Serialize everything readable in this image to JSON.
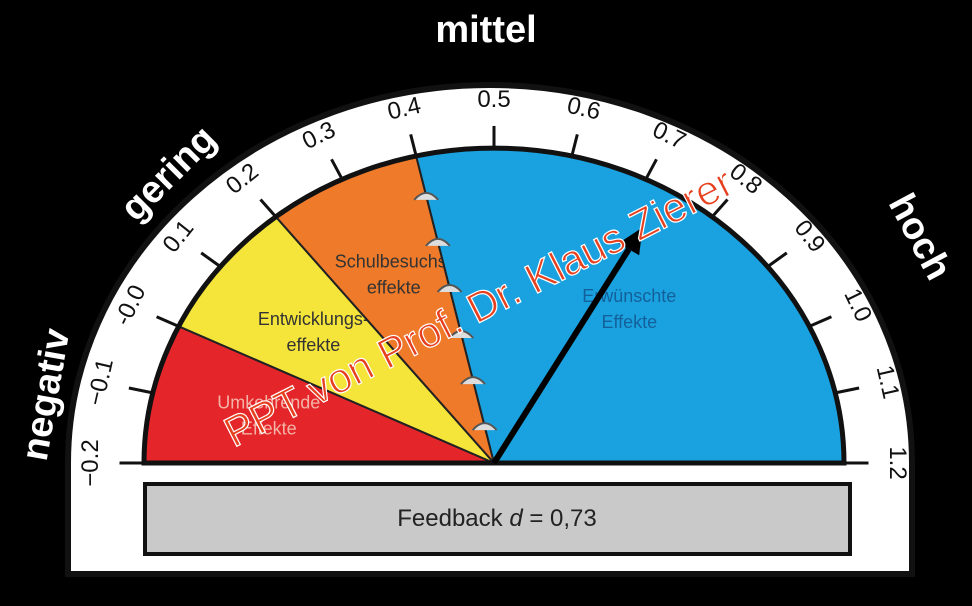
{
  "categories": [
    "negativ",
    "gering",
    "mittel",
    "hoch"
  ],
  "scale": {
    "min": -0.2,
    "max": 1.2,
    "ticks": [
      {
        "value": -0.2,
        "label": "−0.2"
      },
      {
        "value": -0.1,
        "label": "−0.1"
      },
      {
        "value": 0,
        "label": "-0.0"
      },
      {
        "value": 0.1,
        "label": "0.1"
      },
      {
        "value": 0.2,
        "label": "0.2"
      },
      {
        "value": 0.3,
        "label": "0.3"
      },
      {
        "value": 0.4,
        "label": "0.4"
      },
      {
        "value": 0.5,
        "label": "0.5"
      },
      {
        "value": 0.6,
        "label": "0.6"
      },
      {
        "value": 0.7,
        "label": "0.7"
      },
      {
        "value": 0.8,
        "label": "0.8"
      },
      {
        "value": 0.9,
        "label": "0.9"
      },
      {
        "value": 1,
        "label": "1.0"
      },
      {
        "value": 1.1,
        "label": "1.1"
      },
      {
        "value": 1.2,
        "label": "1.2"
      }
    ]
  },
  "zones": [
    {
      "lines": [
        "Umkehrende",
        "Effekte"
      ],
      "from": -0.2,
      "to": 0,
      "color": "#e4262b"
    },
    {
      "lines": [
        "Entwicklungs-",
        "effekte"
      ],
      "from": 0,
      "to": 0.2,
      "color": "#f5e53a"
    },
    {
      "lines": [
        "Schulbesuchs-",
        "effekte"
      ],
      "from": 0.2,
      "to": 0.4,
      "color": "#ee7a2a"
    },
    {
      "lines": [
        "Erwünschte",
        "Effekte"
      ],
      "from": 0.4,
      "to": 1.2,
      "color": "#1aa2e0"
    }
  ],
  "needle": {
    "value": 0.73
  },
  "caption": {
    "prefix": "Feedback ",
    "symbol": "d",
    "suffix": " = 0,73"
  },
  "watermark": "PPT von Prof. Dr. Klaus Zierer"
}
